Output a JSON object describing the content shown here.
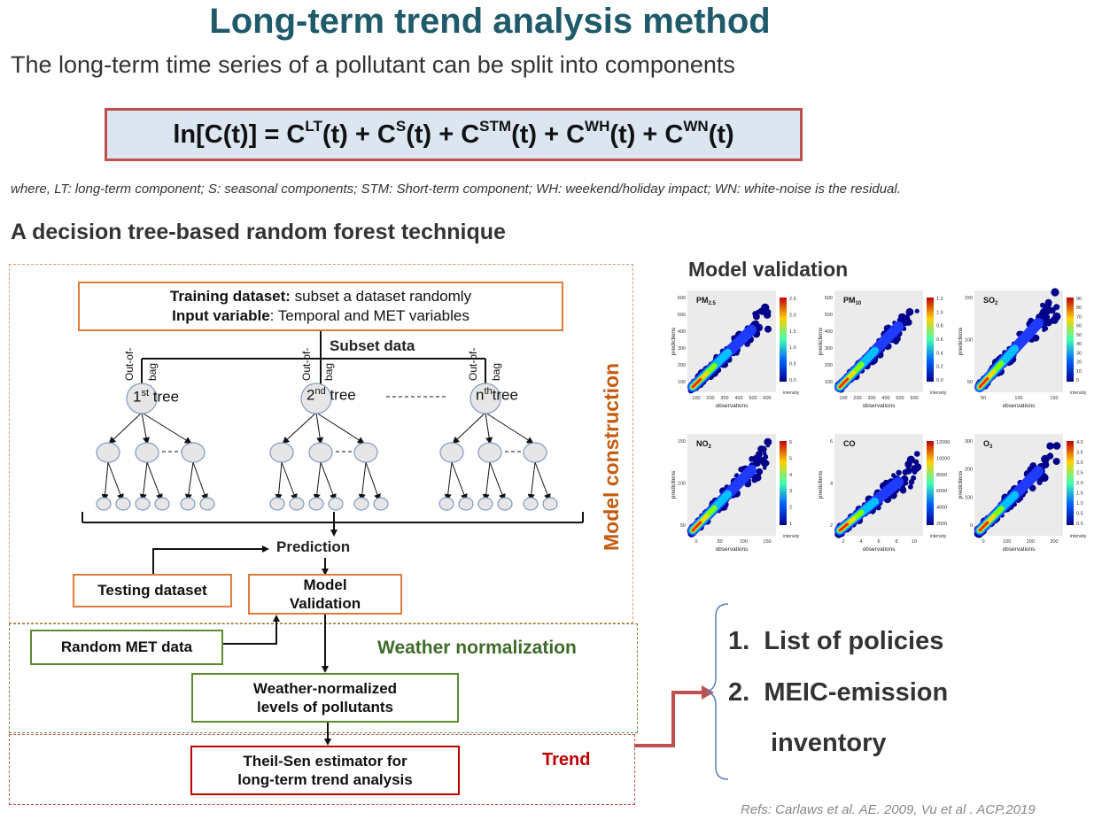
{
  "title": "Long-term trend analysis method",
  "subtitle": "The long-term time series of a pollutant can be split into components",
  "formula": {
    "lhs": "ln[C(t)] = ",
    "terms": [
      {
        "base": "C",
        "sup": "LT",
        "rest": "(t) + "
      },
      {
        "base": "C",
        "sup": "S",
        "rest": "(t) + "
      },
      {
        "base": "C",
        "sup": "STM",
        "rest": "(t) + "
      },
      {
        "base": "C",
        "sup": "WH",
        "rest": "(t) + "
      },
      {
        "base": "C",
        "sup": "WN",
        "rest": "(t)"
      }
    ]
  },
  "where_text": "where, LT: long-term component; S: seasonal components; STM: Short-term component; WH: weekend/holiday impact; WN: white-noise is the residual.",
  "rf_heading": "A decision tree-based random forest technique",
  "diagram": {
    "training_bold": "Training dataset:",
    "training_rest": " subset a dataset randomly",
    "input_bold": "Input variable",
    "input_rest": ": Temporal and MET variables",
    "subset_data": "Subset data",
    "out_of": "Out-of-",
    "bag": "bag",
    "tree1_sup": "st",
    "tree2_sup": "nd",
    "tree3_sup": "th",
    "tree1_base": "1",
    "tree2_base": "2",
    "tree3_base": "n",
    "tree_word": "tree",
    "prediction": "Prediction",
    "testing_dataset": "Testing dataset",
    "model_validation_l1": "Model",
    "model_validation_l2": "Validation",
    "model_construction": "Model construction",
    "random_met": "Random MET data",
    "weather_normalization": "Weather normalization",
    "weather_norm_l1": "Weather-normalized",
    "weather_norm_l2": "levels of pollutants",
    "theil_l1": "Theil-Sen estimator for",
    "theil_l2": "long-term trend analysis",
    "trend": "Trend"
  },
  "validation": {
    "heading": "Model validation",
    "xlabel": "observations",
    "ylabel": "predictions",
    "cbar_label": "intensity",
    "plots": [
      {
        "name_base": "PM",
        "name_sub": "2.5",
        "xticks": [
          "100",
          "200",
          "300",
          "400",
          "500",
          "600"
        ],
        "yticks": [
          "600",
          "500",
          "400",
          "300",
          "200",
          "100"
        ],
        "cticks": [
          "2.5",
          "2.0",
          "1.5",
          "1.0",
          "0.5",
          "0.0"
        ]
      },
      {
        "name_base": "PM",
        "name_sub": "10",
        "xticks": [
          "100",
          "200",
          "300",
          "400",
          "500",
          "600"
        ],
        "yticks": [
          "600",
          "500",
          "400",
          "300",
          "200",
          "100"
        ],
        "cticks": [
          "1.2",
          "1.0",
          "0.8",
          "0.6",
          "0.4",
          "0.2",
          "0.0"
        ]
      },
      {
        "name_base": "SO",
        "name_sub": "2",
        "xticks": [
          "50",
          "100",
          "150"
        ],
        "yticks": [
          "150",
          "100",
          "50"
        ],
        "cticks": [
          "90",
          "80",
          "70",
          "60",
          "50",
          "40",
          "30",
          "20",
          "10",
          "0"
        ]
      },
      {
        "name_base": "NO",
        "name_sub": "2",
        "xticks": [
          "0",
          "50",
          "100",
          "150"
        ],
        "yticks": [
          "150",
          "100",
          "50"
        ],
        "cticks": [
          "6",
          "5",
          "4",
          "3",
          "2",
          "1"
        ]
      },
      {
        "name_base": "CO",
        "name_sub": "",
        "xticks": [
          "2",
          "4",
          "6",
          "8",
          "10"
        ],
        "yticks": [
          "6",
          "4",
          "2"
        ],
        "cticks": [
          "12000",
          "10000",
          "8000",
          "6000",
          "4000",
          "2000"
        ]
      },
      {
        "name_base": "O",
        "name_sub": "3",
        "xticks": [
          "0",
          "100",
          "200",
          "300"
        ],
        "yticks": [
          "300",
          "200",
          "100",
          "0"
        ],
        "cticks": [
          "4.0",
          "3.5",
          "3.0",
          "2.5",
          "2.0",
          "1.5",
          "1.0",
          "0.5",
          "0.0"
        ]
      }
    ]
  },
  "list": [
    {
      "num": "1.",
      "text": "List of policies"
    },
    {
      "num": "2.",
      "text": "MEIC-emission"
    },
    {
      "num": "",
      "text": "inventory"
    }
  ],
  "refs": "Refs: Carlaws et al. AE. 2009, Vu et al . ACP.2019"
}
